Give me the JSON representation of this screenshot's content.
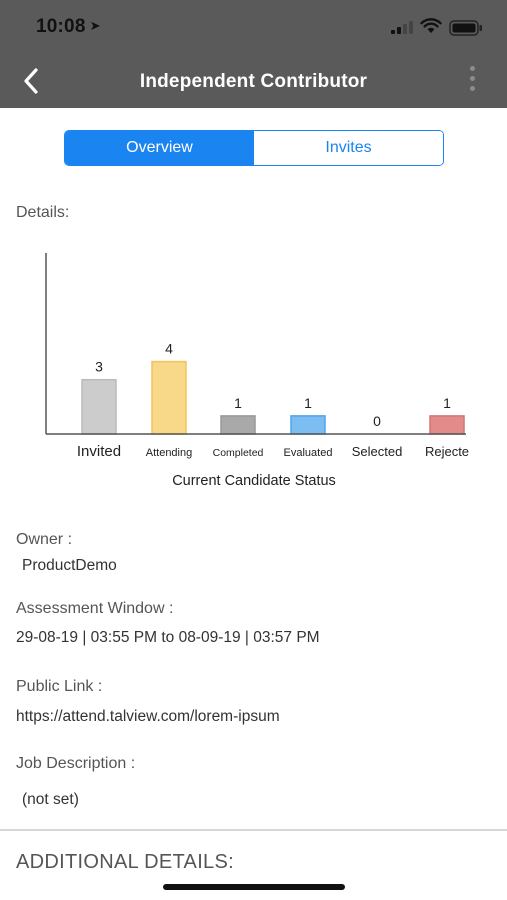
{
  "status_bar": {
    "time": "10:08",
    "location_arrow": "➤"
  },
  "nav": {
    "title": "Independent Contributor",
    "back_icon": "chevron-left-icon",
    "more_icon": "more-vertical-icon"
  },
  "tabs": [
    {
      "label": "Overview",
      "active": true
    },
    {
      "label": "Invites",
      "active": false
    }
  ],
  "details_label": "Details:",
  "chart_data": {
    "type": "bar",
    "title": "Current Candidate Status",
    "xlabel": "Current Candidate Status",
    "ylabel": "",
    "categories": [
      "Invited",
      "Attending",
      "Completed",
      "Evaluated",
      "Selected",
      "Rejecte"
    ],
    "values": [
      3,
      4,
      1,
      1,
      0,
      1
    ],
    "colors": [
      "#cccccc",
      "#f8d98a",
      "#a9a9a9",
      "#7cbdf2",
      "#cccccc",
      "#e38b8b"
    ],
    "border_colors": [
      "#bbbbbb",
      "#f0c45a",
      "#999999",
      "#4ea3ea",
      "#bbbbbb",
      "#d67474"
    ],
    "ylim": [
      0,
      10
    ],
    "grid": false
  },
  "owner": {
    "label": "Owner :",
    "value": "ProductDemo"
  },
  "assessment_window": {
    "label": "Assessment Window :",
    "value": "29-08-19 | 03:55 PM to 08-09-19 | 03:57 PM"
  },
  "public_link": {
    "label": "Public Link :",
    "value": "https://attend.talview.com/lorem-ipsum"
  },
  "job_description": {
    "label": "Job Description :",
    "value": "(not set)"
  },
  "additional_details": "ADDITIONAL DETAILS:"
}
